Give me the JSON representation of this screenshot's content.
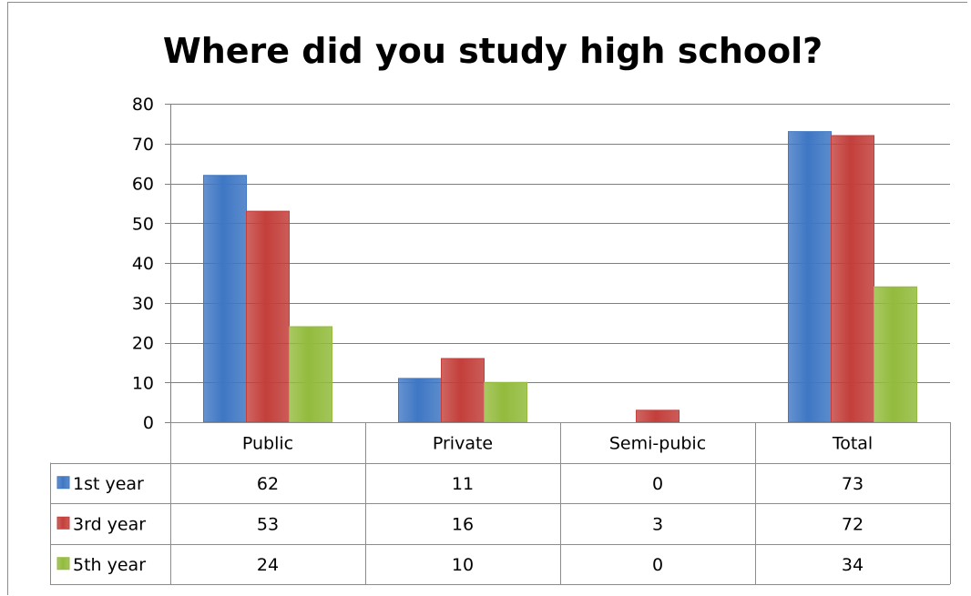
{
  "chart_data": {
    "type": "bar",
    "title": "Where did you study high school?",
    "xlabel": "",
    "ylabel": "",
    "ylim": [
      0,
      80
    ],
    "yticks": [
      "0",
      "10",
      "20",
      "30",
      "40",
      "50",
      "60",
      "70",
      "80"
    ],
    "grid": true,
    "legend": "data-table",
    "categories": [
      "Public",
      "Private",
      "Semi-pubic",
      "Total"
    ],
    "series": [
      {
        "name": "1st year",
        "values": [
          62,
          11,
          0,
          73
        ],
        "color": "#3f77c4"
      },
      {
        "name": "3rd year",
        "values": [
          53,
          16,
          3,
          72
        ],
        "color": "#c33f3b"
      },
      {
        "name": "5th year",
        "values": [
          24,
          10,
          0,
          34
        ],
        "color": "#93bb3d"
      }
    ],
    "table": {
      "rows": [
        [
          "62",
          "11",
          "0",
          "73"
        ],
        [
          "53",
          "16",
          "3",
          "72"
        ],
        [
          "24",
          "10",
          "0",
          "34"
        ]
      ]
    }
  }
}
